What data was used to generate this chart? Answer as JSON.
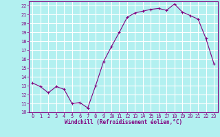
{
  "x": [
    0,
    1,
    2,
    3,
    4,
    5,
    6,
    7,
    8,
    9,
    10,
    11,
    12,
    13,
    14,
    15,
    16,
    17,
    18,
    19,
    20,
    21,
    22,
    23
  ],
  "y": [
    13.3,
    12.9,
    12.2,
    12.9,
    12.6,
    11.0,
    11.1,
    10.5,
    13.0,
    15.7,
    17.4,
    19.0,
    20.7,
    21.2,
    21.4,
    21.6,
    21.7,
    21.5,
    22.2,
    21.3,
    20.9,
    20.5,
    18.3,
    15.5
  ],
  "line_color": "#800080",
  "marker": "+",
  "xlabel": "Windchill (Refroidissement éolien,°C)",
  "xlabel_color": "#800080",
  "bg_color": "#b2f0f0",
  "grid_color": "#ffffff",
  "axis_color": "#800080",
  "tick_color": "#800080",
  "ylim": [
    10,
    22.5
  ],
  "xlim": [
    -0.5,
    23.5
  ],
  "yticks": [
    10,
    11,
    12,
    13,
    14,
    15,
    16,
    17,
    18,
    19,
    20,
    21,
    22
  ],
  "xticks": [
    0,
    1,
    2,
    3,
    4,
    5,
    6,
    7,
    8,
    9,
    10,
    11,
    12,
    13,
    14,
    15,
    16,
    17,
    18,
    19,
    20,
    21,
    22,
    23
  ],
  "tick_fontsize": 5,
  "xlabel_fontsize": 5.5
}
